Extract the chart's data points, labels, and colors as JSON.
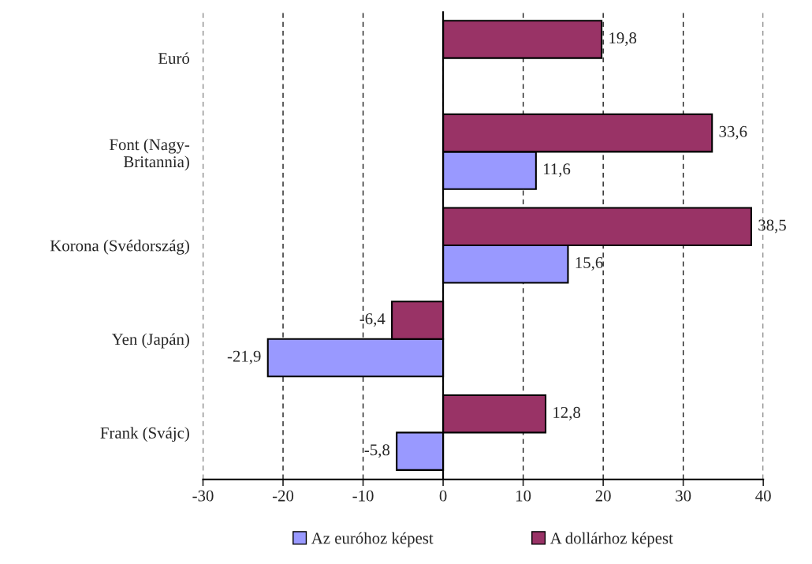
{
  "chart_data": {
    "type": "bar",
    "orientation": "horizontal",
    "categories": [
      "Euró",
      "Font (Nagy-\nBritannia)",
      "Korona (Svédország)",
      "Yen (Japán)",
      "Frank (Svájc)"
    ],
    "series": [
      {
        "name": "Az euróhoz képest",
        "color": "#9999ff",
        "values": [
          null,
          11.6,
          15.6,
          -21.9,
          -5.8
        ],
        "value_labels": [
          null,
          "11,6",
          "15,6",
          "-21,9",
          "-5,8"
        ]
      },
      {
        "name": "A dollárhoz képest",
        "color": "#993366",
        "values": [
          19.8,
          33.6,
          38.5,
          -6.4,
          12.8
        ],
        "value_labels": [
          "19,8",
          "33,6",
          "38,5",
          "-6,4",
          "12,8"
        ]
      }
    ],
    "xlim": [
      -30,
      40
    ],
    "xticks": [
      -30,
      -20,
      -10,
      0,
      10,
      20,
      30,
      40
    ],
    "grid": "x",
    "legend": "bottom",
    "ref_lines": [
      {
        "axis": "x",
        "value": 0,
        "color": "#000000",
        "line_style": "solid"
      }
    ]
  }
}
